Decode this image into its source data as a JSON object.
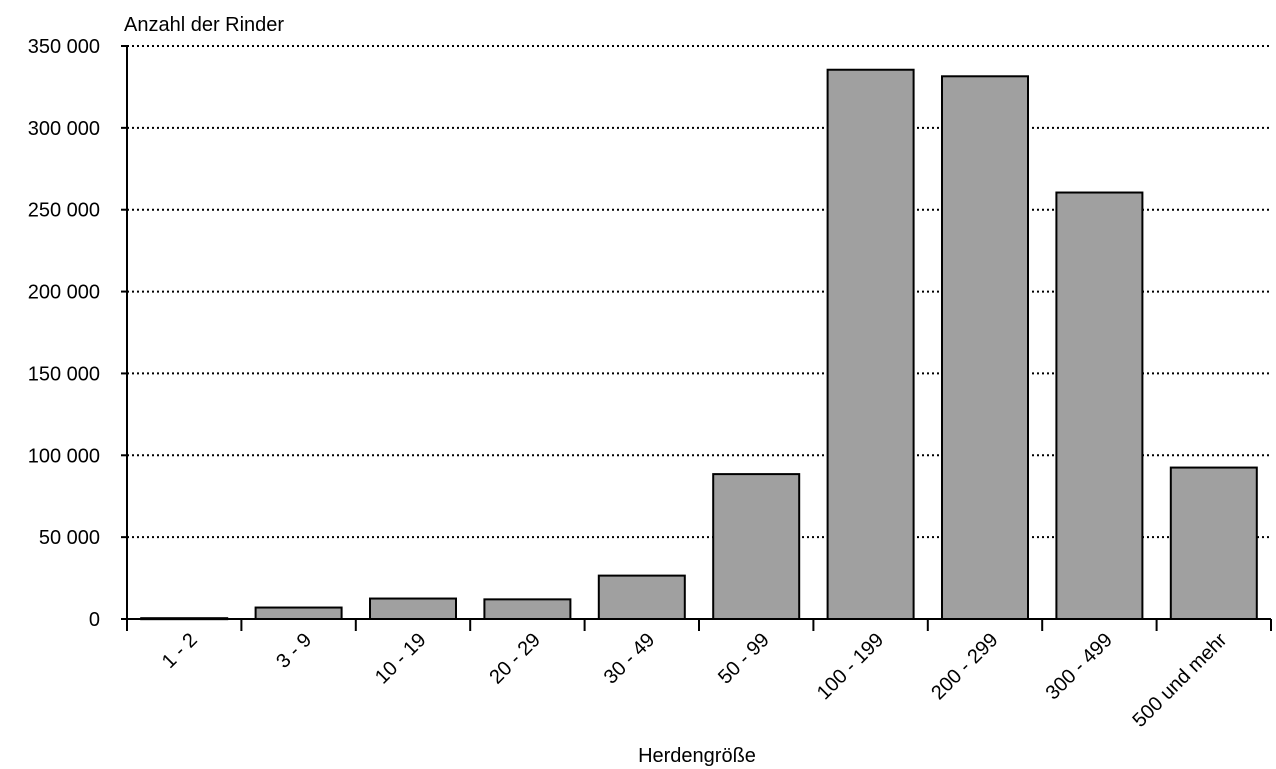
{
  "chart_data": {
    "type": "bar",
    "title": "",
    "ylabel": "Anzahl der Rinder",
    "xlabel": "Herdengröße",
    "categories": [
      "1 - 2",
      "3 - 9",
      "10 - 19",
      "20 - 29",
      "30 - 49",
      "50 - 99",
      "100 - 199",
      "200 - 299",
      "300 - 499",
      "500 und mehr"
    ],
    "values": [
      500,
      7000,
      12500,
      12000,
      26500,
      88500,
      335500,
      331500,
      260500,
      92500
    ],
    "ylim": [
      0,
      350000
    ],
    "yticks": [
      0,
      50000,
      100000,
      150000,
      200000,
      250000,
      300000,
      350000
    ],
    "ytick_labels": [
      "0",
      "50 000",
      "100 000",
      "150 000",
      "200 000",
      "250 000",
      "300 000",
      "350 000"
    ],
    "grid": "horizontal dotted",
    "bar_color": "#a0a0a0",
    "bar_edge_color": "#000000"
  }
}
